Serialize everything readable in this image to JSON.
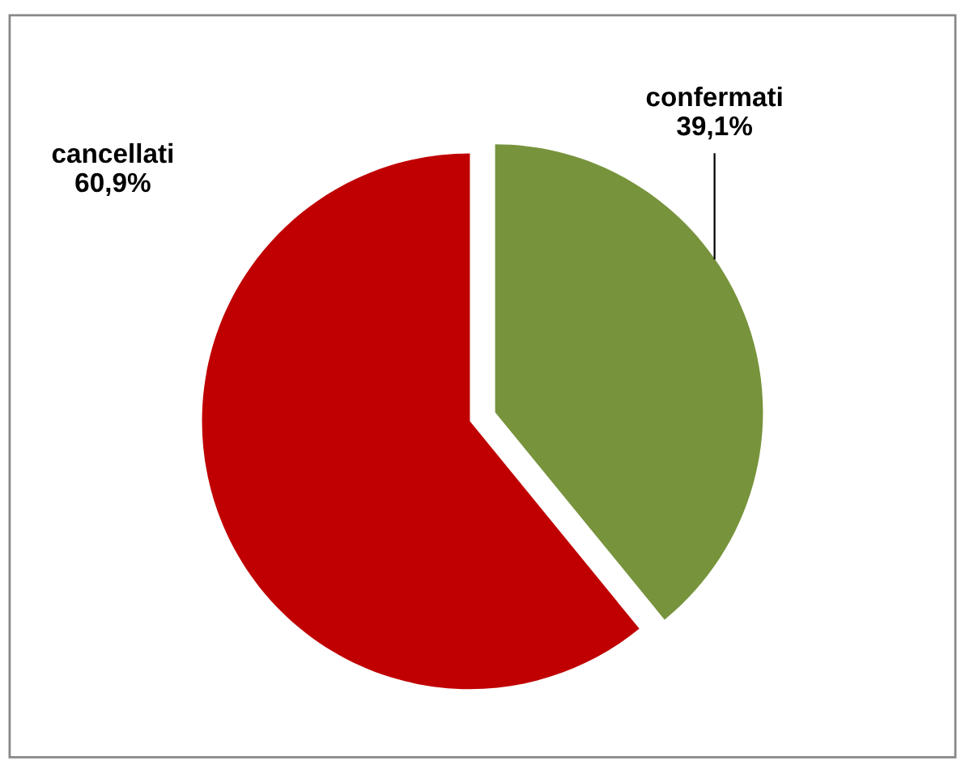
{
  "chart_data": {
    "type": "pie",
    "categories": [
      "confermati",
      "cancellati"
    ],
    "values": [
      39.1,
      60.9
    ],
    "colors": [
      "#77933c",
      "#c00000"
    ],
    "value_labels": [
      "39,1%",
      "60,9%"
    ],
    "legend": false
  }
}
